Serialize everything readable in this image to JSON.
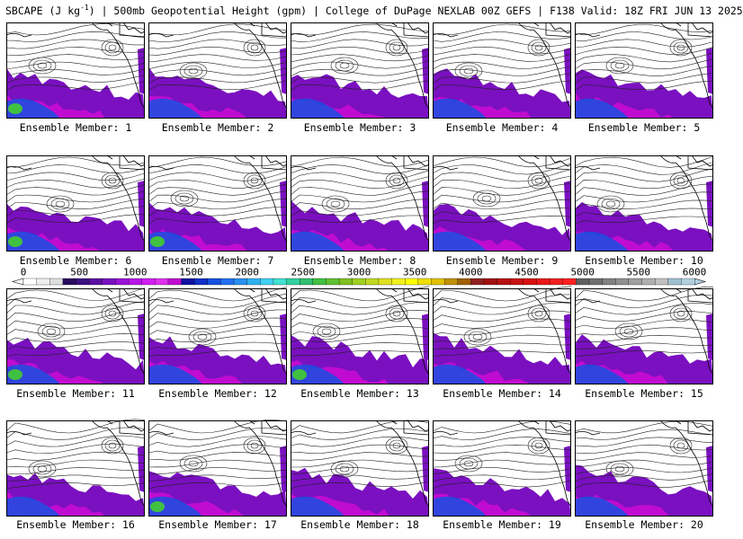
{
  "title": {
    "field": "SBCAPE (J kg",
    "unit_exp": "-1",
    "rest": ") | 500mb Geopotential Height (gpm) | College of DuPage NEXLAB 00Z GEFS | F138 Valid: 18Z FRI JUN 13 2025"
  },
  "caption_prefix": "Ensemble Member:",
  "members": [
    {
      "label": "Ensemble Member: 1",
      "cape": 0.95,
      "green": true
    },
    {
      "label": "Ensemble Member: 2",
      "cape": 0.8,
      "green": false
    },
    {
      "label": "Ensemble Member: 3",
      "cape": 0.7,
      "green": false
    },
    {
      "label": "Ensemble Member: 4",
      "cape": 0.9,
      "green": false
    },
    {
      "label": "Ensemble Member: 5",
      "cape": 0.75,
      "green": false
    },
    {
      "label": "Ensemble Member: 6",
      "cape": 0.95,
      "green": true
    },
    {
      "label": "Ensemble Member: 7",
      "cape": 0.85,
      "green": true
    },
    {
      "label": "Ensemble Member: 8",
      "cape": 0.8,
      "green": false
    },
    {
      "label": "Ensemble Member: 9",
      "cape": 0.7,
      "green": false
    },
    {
      "label": "Ensemble Member: 10",
      "cape": 0.75,
      "green": false
    },
    {
      "label": "Ensemble Member: 11",
      "cape": 0.8,
      "green": true
    },
    {
      "label": "Ensemble Member: 12",
      "cape": 0.9,
      "green": false
    },
    {
      "label": "Ensemble Member: 13",
      "cape": 0.85,
      "green": true
    },
    {
      "label": "Ensemble Member: 14",
      "cape": 0.9,
      "green": false
    },
    {
      "label": "Ensemble Member: 15",
      "cape": 0.8,
      "green": false
    },
    {
      "label": "Ensemble Member: 16",
      "cape": 0.7,
      "green": false
    },
    {
      "label": "Ensemble Member: 17",
      "cape": 0.9,
      "green": true
    },
    {
      "label": "Ensemble Member: 18",
      "cape": 0.75,
      "green": false
    },
    {
      "label": "Ensemble Member: 19",
      "cape": 0.7,
      "green": false
    },
    {
      "label": "Ensemble Member: 20",
      "cape": 0.85,
      "green": false
    }
  ],
  "colorbar": {
    "ticks": [
      "0",
      "500",
      "1000",
      "1500",
      "2000",
      "2500",
      "3000",
      "3500",
      "4000",
      "4500",
      "5000",
      "5500",
      "6000"
    ],
    "range": [
      0,
      6000
    ],
    "colors": [
      "#ffffff",
      "#eeeeee",
      "#dddddd",
      "#2a0a5e",
      "#3b0f80",
      "#5c0fa0",
      "#7a10c0",
      "#9a12d8",
      "#b815e8",
      "#d01ef0",
      "#e030f0",
      "#c00cd0",
      "#1010a0",
      "#1030c8",
      "#1850e0",
      "#2070f0",
      "#2890f0",
      "#30b0f0",
      "#40d0f0",
      "#40e0d0",
      "#30d0a0",
      "#30c070",
      "#40c040",
      "#60c030",
      "#80c020",
      "#a0d020",
      "#c0d820",
      "#e0e020",
      "#f0f020",
      "#ffff00",
      "#f0e000",
      "#e0c000",
      "#c09000",
      "#a06000",
      "#902020",
      "#a01010",
      "#b81010",
      "#c81010",
      "#d81010",
      "#e81818",
      "#f02020",
      "#ff2020",
      "#606060",
      "#707070",
      "#808080",
      "#909090",
      "#a0a0a0",
      "#b0b0b0",
      "#c0c0c0",
      "#a0c0d0",
      "#b0d0e0"
    ]
  },
  "colors": {
    "land": "#ffffff",
    "contour": "#222222",
    "coast": "#000000",
    "cape_low": "#7a10c0",
    "cape_mid": "#c00cd0",
    "cape_high": "#1850e0",
    "cape_extreme": "#40c040"
  }
}
